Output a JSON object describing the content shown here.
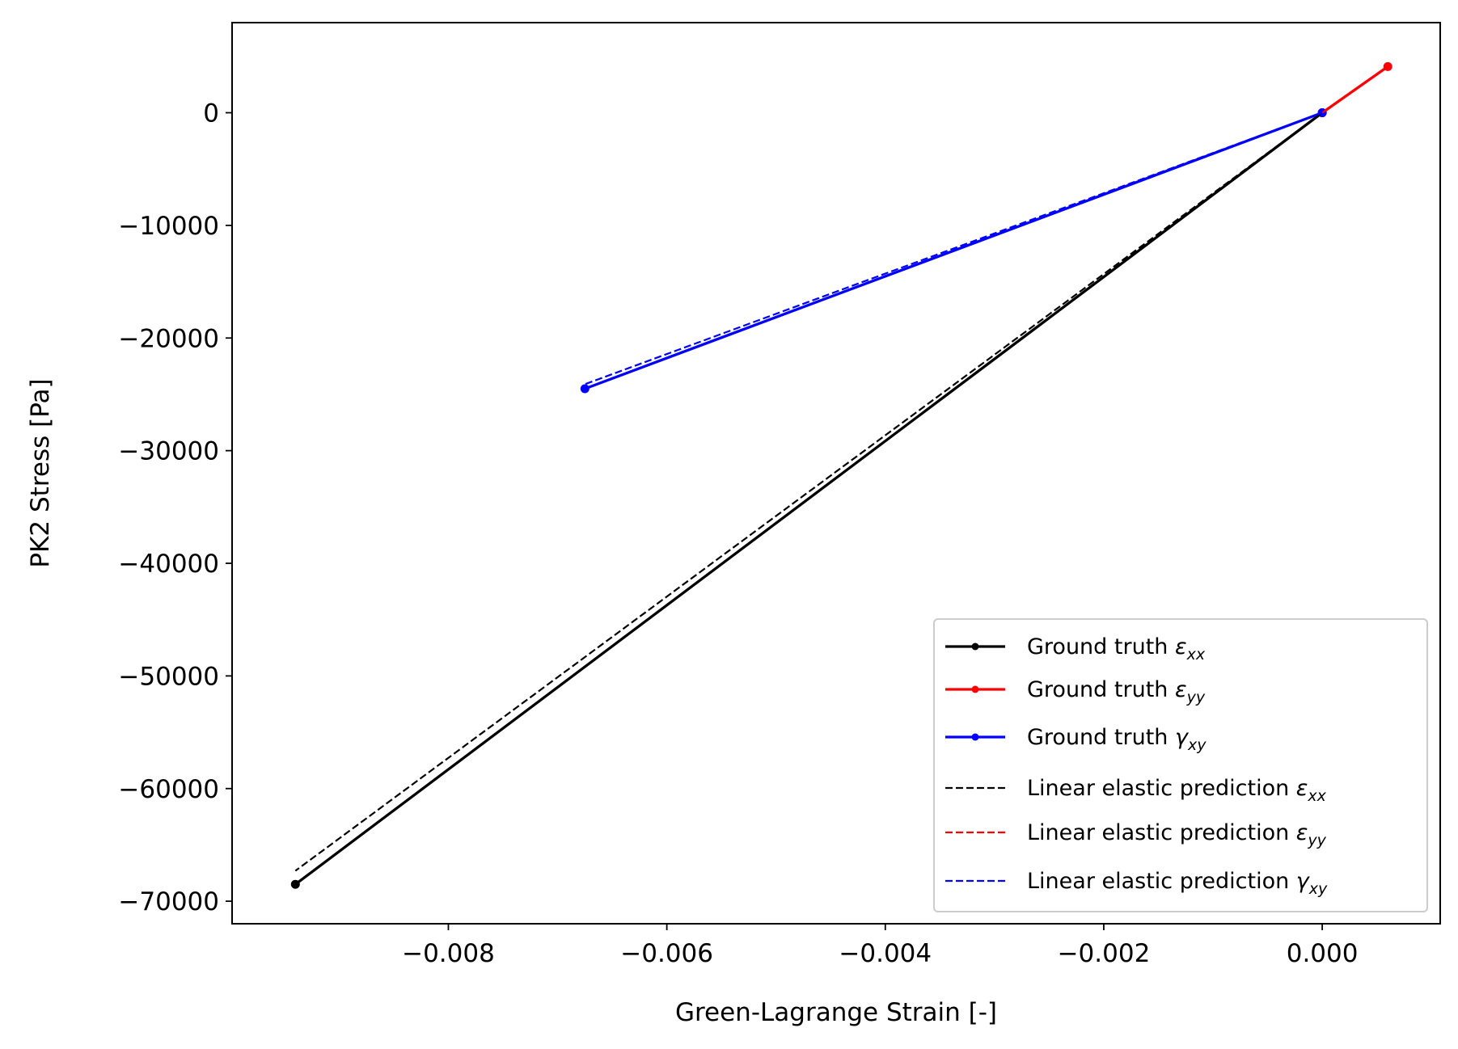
{
  "chart_data": {
    "type": "line",
    "title": "",
    "xlabel": "Green-Lagrange Strain [-]",
    "ylabel": "PK2 Stress [Pa]",
    "xlim": [
      -0.00998,
      0.00108
    ],
    "ylim": [
      -72000,
      8000
    ],
    "grid": false,
    "legend_position": "lower right",
    "x_ticks": [
      {
        "value": -0.008,
        "label": "−0.008"
      },
      {
        "value": -0.006,
        "label": "−0.006"
      },
      {
        "value": -0.004,
        "label": "−0.004"
      },
      {
        "value": -0.002,
        "label": "−0.002"
      },
      {
        "value": 0.0,
        "label": "0.000"
      }
    ],
    "y_ticks": [
      {
        "value": 0,
        "label": "0"
      },
      {
        "value": -10000,
        "label": "−10000"
      },
      {
        "value": -20000,
        "label": "−20000"
      },
      {
        "value": -30000,
        "label": "−30000"
      },
      {
        "value": -40000,
        "label": "−40000"
      },
      {
        "value": -50000,
        "label": "−50000"
      },
      {
        "value": -60000,
        "label": "−60000"
      },
      {
        "value": -70000,
        "label": "−70000"
      }
    ],
    "series": [
      {
        "name": "Ground truth εxx",
        "label_main": "Ground truth ",
        "label_symbol": "ε",
        "label_sub": "xx",
        "color": "#000000",
        "style": "solid",
        "marker": true,
        "x": [
          0.0,
          -0.0094
        ],
        "y": [
          0,
          -68500
        ]
      },
      {
        "name": "Ground truth εyy",
        "label_main": "Ground truth ",
        "label_symbol": "ε",
        "label_sub": "yy",
        "color": "#ff0000",
        "style": "solid",
        "marker": true,
        "x": [
          0.0,
          0.0006
        ],
        "y": [
          0,
          4100
        ]
      },
      {
        "name": "Ground truth γxy",
        "label_main": "Ground truth ",
        "label_symbol": "γ",
        "label_sub": "xy",
        "color": "#0000ff",
        "style": "solid",
        "marker": true,
        "x": [
          0.0,
          -0.00675
        ],
        "y": [
          0,
          -24500
        ]
      },
      {
        "name": "Linear elastic prediction εxx",
        "label_main": "Linear elastic prediction ",
        "label_symbol": "ε",
        "label_sub": "xx",
        "color": "#000000",
        "style": "dashed",
        "marker": false,
        "x": [
          0.0,
          -0.0094
        ],
        "y": [
          0,
          -67300
        ]
      },
      {
        "name": "Linear elastic prediction εyy",
        "label_main": "Linear elastic prediction ",
        "label_symbol": "ε",
        "label_sub": "yy",
        "color": "#ff0000",
        "style": "dashed",
        "marker": false,
        "x": [
          0.0,
          0.0006
        ],
        "y": [
          0,
          4100
        ]
      },
      {
        "name": "Linear elastic prediction γxy",
        "label_main": "Linear elastic prediction ",
        "label_symbol": "γ",
        "label_sub": "xy",
        "color": "#0000ff",
        "style": "dashed",
        "marker": false,
        "x": [
          0.0,
          -0.00675
        ],
        "y": [
          0,
          -24100
        ]
      }
    ]
  }
}
